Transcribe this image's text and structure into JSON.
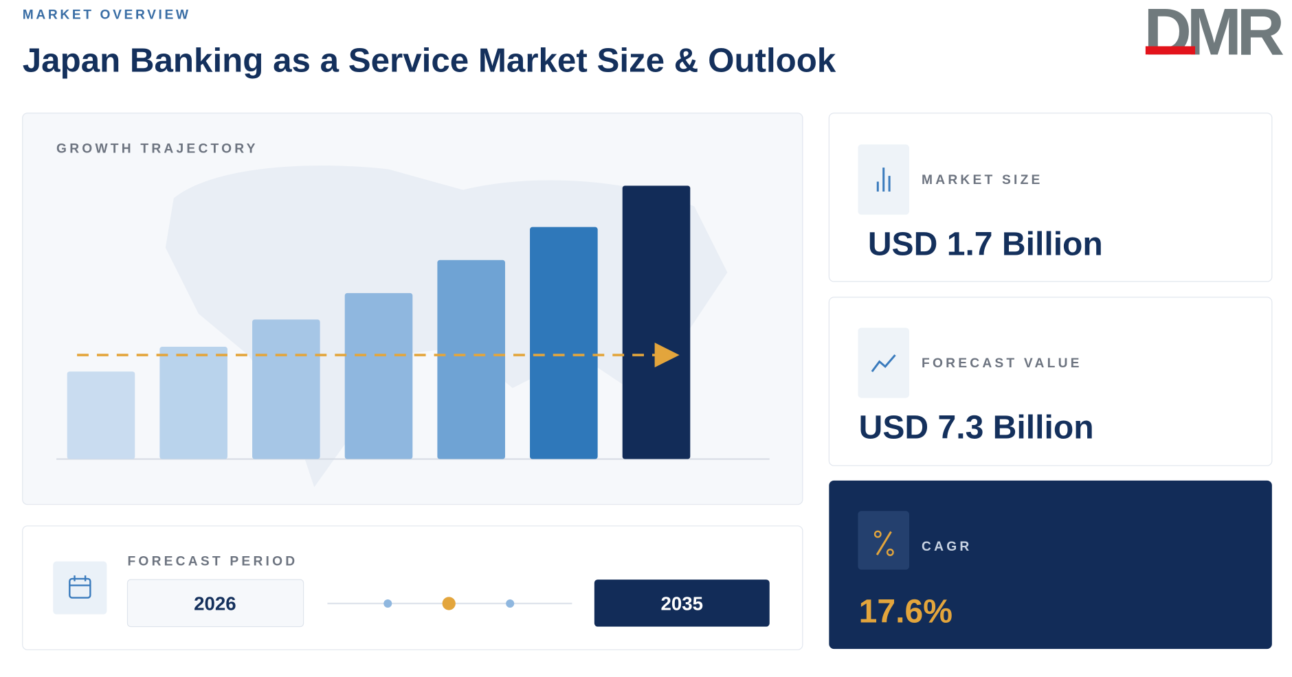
{
  "header": {
    "eyebrow": "MARKET OVERVIEW",
    "title": "Japan Banking as a Service Market Size & Outlook",
    "logo": "DMR"
  },
  "growth_card": {
    "label": "GROWTH TRAJECTORY"
  },
  "forecast_period": {
    "label": "FORECAST PERIOD",
    "start": "2026",
    "end": "2035"
  },
  "metrics": [
    {
      "label": "MARKET SIZE",
      "value": "USD 1.7 Billion"
    },
    {
      "label": "FORECAST VALUE",
      "value": "USD 7.3 Billion"
    },
    {
      "label": "CAGR",
      "value": "17.6%"
    }
  ]
}
